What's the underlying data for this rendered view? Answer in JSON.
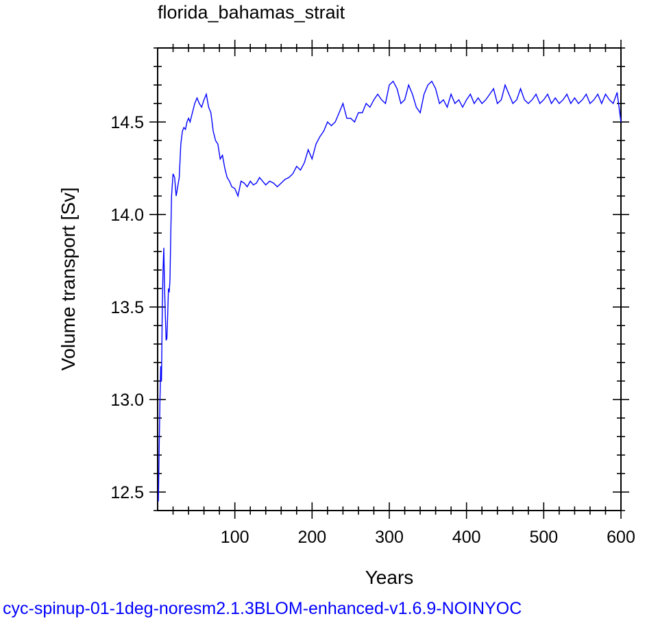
{
  "chart_data": {
    "type": "line",
    "title": "florida_bahamas_strait",
    "xlabel": "Years",
    "ylabel": "Volume transport [Sv]",
    "xlim": [
      0,
      600
    ],
    "ylim": [
      12.4,
      14.9
    ],
    "xticks": [
      100,
      200,
      300,
      400,
      500,
      600
    ],
    "yticks": [
      12.5,
      13.0,
      13.5,
      14.0,
      14.5
    ],
    "grid": false,
    "line_color": "#0000ff",
    "series": [
      {
        "x": [
          1,
          2,
          3,
          4,
          5,
          6,
          7,
          8,
          9,
          10,
          11,
          12,
          13,
          14,
          15,
          16,
          17,
          18,
          20,
          22,
          24,
          26,
          28,
          30,
          32,
          34,
          36,
          38,
          40,
          42,
          45,
          48,
          51,
          54,
          57,
          60,
          63,
          66,
          69,
          72,
          75,
          78,
          81,
          84,
          87,
          90,
          93,
          96,
          100,
          104,
          108,
          112,
          116,
          120,
          124,
          128,
          132,
          136,
          140,
          145,
          150,
          155,
          160,
          165,
          170,
          175,
          180,
          185,
          190,
          195,
          200,
          205,
          210,
          215,
          220,
          225,
          230,
          235,
          240,
          245,
          250,
          255,
          260,
          265,
          270,
          275,
          280,
          285,
          290,
          295,
          300,
          305,
          310,
          315,
          320,
          325,
          330,
          335,
          340,
          345,
          350,
          355,
          360,
          365,
          370,
          375,
          380,
          385,
          390,
          395,
          400,
          405,
          410,
          415,
          420,
          425,
          430,
          435,
          440,
          445,
          450,
          455,
          460,
          465,
          470,
          475,
          480,
          485,
          490,
          495,
          500,
          505,
          510,
          515,
          520,
          525,
          530,
          535,
          540,
          545,
          550,
          555,
          560,
          565,
          570,
          575,
          580,
          585,
          590,
          595,
          600
        ],
        "y": [
          12.45,
          12.75,
          13.0,
          13.18,
          13.1,
          13.5,
          13.7,
          13.82,
          13.6,
          13.45,
          13.32,
          13.33,
          13.45,
          13.6,
          13.58,
          13.65,
          13.9,
          14.1,
          14.22,
          14.2,
          14.1,
          14.15,
          14.2,
          14.38,
          14.45,
          14.47,
          14.46,
          14.5,
          14.52,
          14.5,
          14.55,
          14.6,
          14.63,
          14.6,
          14.58,
          14.62,
          14.65,
          14.58,
          14.55,
          14.45,
          14.4,
          14.38,
          14.3,
          14.32,
          14.25,
          14.2,
          14.18,
          14.15,
          14.14,
          14.1,
          14.18,
          14.17,
          14.15,
          14.18,
          14.16,
          14.17,
          14.2,
          14.18,
          14.16,
          14.18,
          14.17,
          14.15,
          14.17,
          14.19,
          14.2,
          14.22,
          14.26,
          14.24,
          14.28,
          14.35,
          14.3,
          14.38,
          14.42,
          14.45,
          14.5,
          14.48,
          14.5,
          14.55,
          14.6,
          14.52,
          14.52,
          14.5,
          14.55,
          14.55,
          14.6,
          14.58,
          14.62,
          14.65,
          14.62,
          14.6,
          14.7,
          14.72,
          14.68,
          14.6,
          14.62,
          14.7,
          14.65,
          14.58,
          14.55,
          14.65,
          14.7,
          14.72,
          14.68,
          14.6,
          14.62,
          14.58,
          14.65,
          14.6,
          14.62,
          14.58,
          14.62,
          14.65,
          14.6,
          14.63,
          14.6,
          14.62,
          14.65,
          14.68,
          14.6,
          14.62,
          14.7,
          14.65,
          14.6,
          14.62,
          14.68,
          14.62,
          14.6,
          14.62,
          14.65,
          14.6,
          14.62,
          14.65,
          14.6,
          14.63,
          14.6,
          14.62,
          14.65,
          14.6,
          14.63,
          14.6,
          14.62,
          14.65,
          14.6,
          14.62,
          14.65,
          14.6,
          14.65,
          14.62,
          14.6,
          14.66,
          14.5
        ]
      }
    ]
  },
  "footer": "cyc-spinup-01-1deg-noresm2.1.3BLOM-enhanced-v1.6.9-NOINYOC"
}
